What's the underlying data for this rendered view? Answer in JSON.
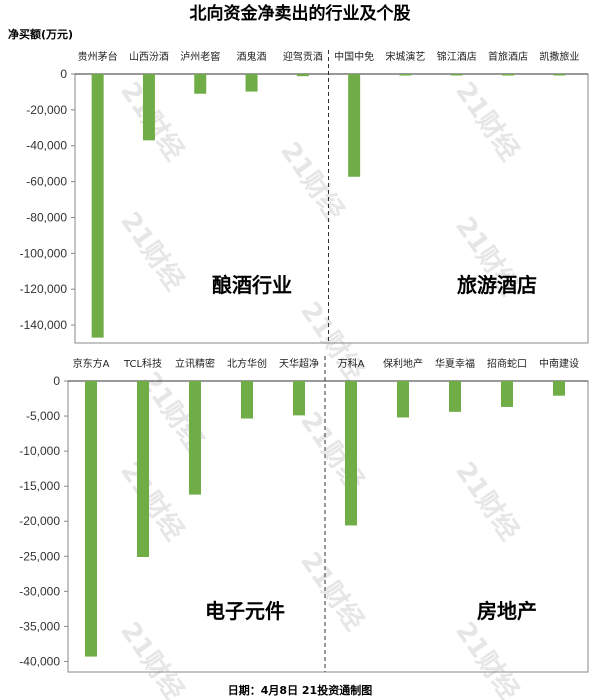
{
  "title": "北向资金净卖出的行业及个股",
  "footer": "日期：4月8日 21投资通制图",
  "watermark": "21财经",
  "colors": {
    "bar": "#70ad47",
    "axis": "#888888"
  },
  "chart_data": [
    {
      "type": "bar",
      "ylabel": "净买额(万元)",
      "ylim": [
        -150000,
        0
      ],
      "yticks": [
        0,
        -20000,
        -40000,
        -60000,
        -80000,
        -100000,
        -120000,
        -140000
      ],
      "ytick_labels": [
        "0",
        "-20,000",
        "-40,000",
        "-60,000",
        "-80,000",
        "-100,000",
        "-120,000",
        "-140,000"
      ],
      "groups": [
        "酿酒行业",
        "旅游酒店"
      ],
      "categories": [
        "贵州茅台",
        "山西汾酒",
        "泸州老窖",
        "酒鬼酒",
        "迎驾贡酒",
        "中国中免",
        "宋城演艺",
        "锦江酒店",
        "首旅酒店",
        "凯撒旅业"
      ],
      "group_of": [
        0,
        0,
        0,
        0,
        0,
        1,
        1,
        1,
        1,
        1
      ],
      "values": [
        -147000,
        -37000,
        -11000,
        -9800,
        -1200,
        -57300,
        -800,
        -500,
        -500,
        -300
      ]
    },
    {
      "type": "bar",
      "ylim": [
        -41500,
        0
      ],
      "yticks": [
        0,
        -5000,
        -10000,
        -15000,
        -20000,
        -25000,
        -30000,
        -35000,
        -40000
      ],
      "ytick_labels": [
        "0",
        "-5,000",
        "-10,000",
        "-15,000",
        "-20,000",
        "-25,000",
        "-30,000",
        "-35,000",
        "-40,000"
      ],
      "groups": [
        "电子元件",
        "房地产"
      ],
      "categories": [
        "京东方A",
        "TCL科技",
        "立讯精密",
        "北方华创",
        "天华超净",
        "万科A",
        "保利地产",
        "华夏幸福",
        "招商蛇口",
        "中南建设"
      ],
      "group_of": [
        0,
        0,
        0,
        0,
        0,
        1,
        1,
        1,
        1,
        1
      ],
      "values": [
        -39300,
        -25100,
        -16200,
        -5350,
        -4900,
        -20600,
        -5200,
        -4400,
        -3700,
        -2100
      ]
    }
  ]
}
